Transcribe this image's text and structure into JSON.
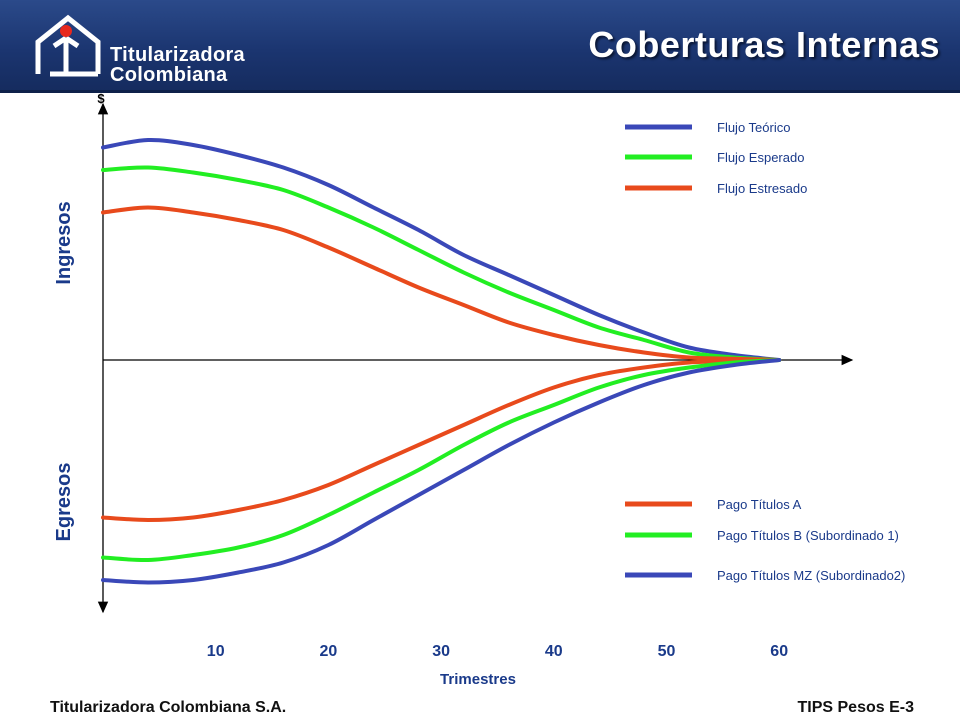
{
  "header": {
    "title": "Coberturas Internas",
    "logo_line1": "Titularizadora",
    "logo_line2": "Colombiana"
  },
  "footer": {
    "left": "Titularizadora Colombiana S.A.",
    "right": "TIPS Pesos E-3"
  },
  "chart_data": {
    "type": "line",
    "title": "",
    "xlabel": "Trimestres",
    "ylabel": "$",
    "y_upper_label": "Ingresos",
    "y_lower_label": "Egresos",
    "x_ticks": [
      10,
      20,
      30,
      40,
      50,
      60
    ],
    "xlim": [
      0,
      66
    ],
    "ylim": [
      -100,
      100
    ],
    "grid": false,
    "series": [
      {
        "name": "Flujo Teórico",
        "color": "#3a48b8",
        "region": "ingresos",
        "x": [
          0,
          4,
          8,
          12,
          16,
          20,
          24,
          28,
          32,
          36,
          40,
          44,
          48,
          52,
          56,
          60
        ],
        "y": [
          85,
          88,
          86,
          82,
          77,
          70,
          61,
          52,
          42,
          34,
          26,
          18,
          11,
          5,
          2,
          0
        ]
      },
      {
        "name": "Flujo Esperado",
        "color": "#22ee22",
        "region": "ingresos",
        "x": [
          0,
          4,
          8,
          12,
          16,
          20,
          24,
          28,
          32,
          36,
          40,
          44,
          48,
          52,
          56,
          60
        ],
        "y": [
          76,
          77,
          75,
          72,
          68,
          61,
          53,
          44,
          35,
          27,
          20,
          13,
          8,
          3,
          1,
          0
        ]
      },
      {
        "name": "Flujo Estresado",
        "color": "#e84a1c",
        "region": "ingresos",
        "x": [
          0,
          4,
          8,
          12,
          16,
          20,
          24,
          28,
          32,
          36,
          40,
          44,
          48,
          52,
          56,
          60
        ],
        "y": [
          59,
          61,
          59,
          56,
          52,
          45,
          37,
          29,
          22,
          15,
          10,
          6,
          3,
          1,
          0.5,
          0
        ]
      },
      {
        "name": "Pago Títulos A",
        "color": "#e84a1c",
        "region": "egresos",
        "x": [
          0,
          4,
          8,
          12,
          16,
          20,
          24,
          28,
          32,
          36,
          40,
          44,
          48,
          52,
          56,
          60
        ],
        "y": [
          -63,
          -64,
          -63,
          -60,
          -56,
          -50,
          -42,
          -34,
          -26,
          -18,
          -11,
          -6,
          -3,
          -1,
          -0.5,
          0
        ]
      },
      {
        "name": "Pago Títulos B (Subordinado 1)",
        "color": "#22ee22",
        "region": "egresos",
        "x": [
          0,
          4,
          8,
          12,
          16,
          20,
          24,
          28,
          32,
          36,
          40,
          44,
          48,
          52,
          56,
          60
        ],
        "y": [
          -79,
          -80,
          -78,
          -75,
          -70,
          -62,
          -53,
          -44,
          -34,
          -25,
          -18,
          -11,
          -6,
          -3,
          -1,
          0
        ]
      },
      {
        "name": "Pago Títulos MZ (Subordinado2)",
        "color": "#3a48b8",
        "region": "egresos",
        "x": [
          0,
          4,
          8,
          12,
          16,
          20,
          24,
          28,
          32,
          36,
          40,
          44,
          48,
          52,
          56,
          60
        ],
        "y": [
          -88,
          -89,
          -88,
          -85,
          -81,
          -74,
          -64,
          -54,
          -44,
          -34,
          -25,
          -17,
          -10,
          -5,
          -2,
          0
        ]
      }
    ],
    "legend_placement": "top-right (ingresos), bottom-right (egresos)"
  }
}
